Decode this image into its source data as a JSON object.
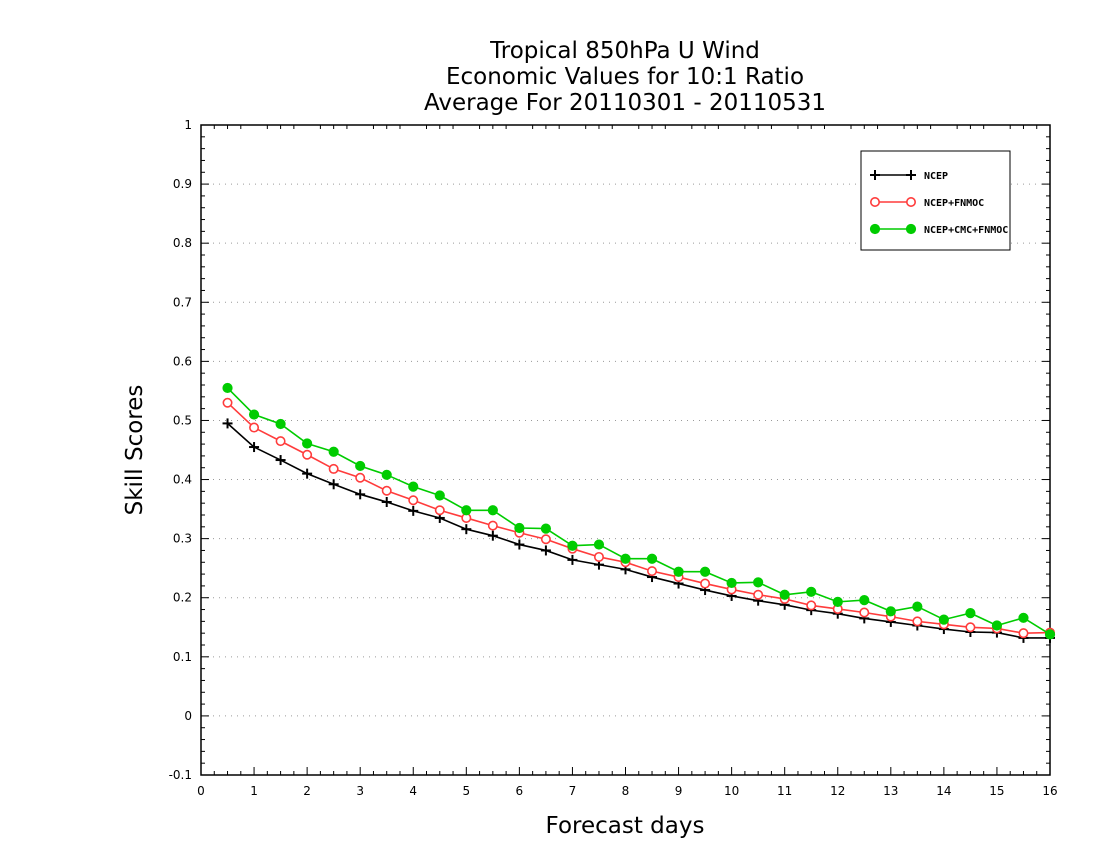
{
  "chart_data": {
    "type": "line",
    "title_lines": [
      "Tropical 850hPa U Wind",
      "Economic Values for 10:1 Ratio",
      "Average For 20110301 - 20110531"
    ],
    "xlabel": "Forecast days",
    "ylabel": "Skill Scores",
    "xlim": [
      0,
      16
    ],
    "ylim": [
      -0.1,
      1
    ],
    "x_ticks": [
      "0",
      "1",
      "2",
      "3",
      "4",
      "5",
      "6",
      "7",
      "8",
      "9",
      "10",
      "11",
      "12",
      "13",
      "14",
      "15",
      "16"
    ],
    "y_ticks": [
      "1",
      "0.9",
      "0.8",
      "0.7",
      "0.6",
      "0.5",
      "0.4",
      "0.3",
      "0.2",
      "0.1",
      "0",
      "-0.1"
    ],
    "grid": "horizontal dotted",
    "legend_position": "top-right",
    "x": [
      0.5,
      1,
      1.5,
      2,
      2.5,
      3,
      3.5,
      4,
      4.5,
      5,
      5.5,
      6,
      6.5,
      7,
      7.5,
      8,
      8.5,
      9,
      9.5,
      10,
      10.5,
      11,
      11.5,
      12,
      12.5,
      13,
      13.5,
      14,
      14.5,
      15,
      15.5,
      16
    ],
    "series": [
      {
        "name": "NCEP",
        "color": "#000000",
        "marker": "plus",
        "values": [
          0.495,
          0.455,
          0.433,
          0.41,
          0.392,
          0.375,
          0.362,
          0.347,
          0.335,
          0.316,
          0.305,
          0.29,
          0.28,
          0.264,
          0.256,
          0.248,
          0.235,
          0.224,
          0.213,
          0.203,
          0.195,
          0.188,
          0.179,
          0.173,
          0.165,
          0.159,
          0.153,
          0.147,
          0.142,
          0.141,
          0.132,
          0.132
        ]
      },
      {
        "name": "NCEP+FNMOC",
        "color": "#ff3c3c",
        "marker": "open-circle",
        "values": [
          0.53,
          0.488,
          0.465,
          0.442,
          0.418,
          0.403,
          0.381,
          0.365,
          0.348,
          0.335,
          0.322,
          0.31,
          0.299,
          0.283,
          0.269,
          0.26,
          0.245,
          0.235,
          0.224,
          0.214,
          0.205,
          0.198,
          0.187,
          0.181,
          0.175,
          0.168,
          0.16,
          0.155,
          0.15,
          0.148,
          0.14,
          0.141
        ]
      },
      {
        "name": "NCEP+CMC+FNMOC",
        "color": "#00cc00",
        "marker": "filled-circle",
        "values": [
          0.555,
          0.51,
          0.494,
          0.461,
          0.447,
          0.423,
          0.408,
          0.388,
          0.373,
          0.348,
          0.348,
          0.318,
          0.317,
          0.288,
          0.29,
          0.266,
          0.266,
          0.244,
          0.244,
          0.225,
          0.226,
          0.205,
          0.21,
          0.193,
          0.196,
          0.177,
          0.185,
          0.163,
          0.174,
          0.153,
          0.166,
          0.138
        ]
      }
    ]
  }
}
